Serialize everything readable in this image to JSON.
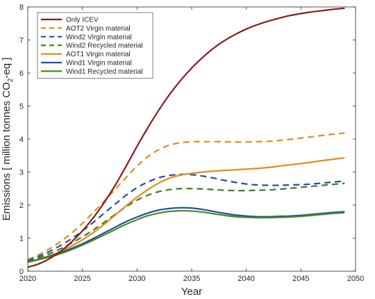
{
  "chart_data": {
    "type": "line",
    "title": "",
    "xlabel": "Year",
    "ylabel_main": "Emissions [ million tonnes CO",
    "ylabel_sub": "2",
    "ylabel_tail": "-eq ]",
    "xlim": [
      2020,
      2050
    ],
    "ylim": [
      0,
      8
    ],
    "x_ticks": [
      "2020",
      "2025",
      "2030",
      "2035",
      "2040",
      "2045",
      "2050"
    ],
    "y_ticks": [
      "0",
      "1",
      "2",
      "3",
      "4",
      "5",
      "6",
      "7",
      "8"
    ],
    "grid": false,
    "legend_position": "top-left",
    "x": [
      2020,
      2021,
      2022,
      2023,
      2024,
      2025,
      2026,
      2027,
      2028,
      2029,
      2030,
      2031,
      2032,
      2033,
      2034,
      2035,
      2036,
      2037,
      2038,
      2039,
      2040,
      2041,
      2042,
      2043,
      2044,
      2045,
      2046,
      2047,
      2048,
      2049
    ],
    "series": [
      {
        "name": "Only ICEV",
        "color": "#8b1a1a",
        "dash": "solid",
        "values": [
          0.12,
          0.22,
          0.38,
          0.6,
          0.88,
          1.22,
          1.62,
          2.08,
          2.6,
          3.18,
          3.78,
          4.35,
          4.88,
          5.36,
          5.78,
          6.15,
          6.47,
          6.75,
          6.98,
          7.17,
          7.33,
          7.46,
          7.57,
          7.66,
          7.74,
          7.8,
          7.85,
          7.89,
          7.93,
          7.96
        ]
      },
      {
        "name": "AOT2 Virgin material",
        "color": "#e08c14",
        "dash": "dashed",
        "values": [
          0.35,
          0.5,
          0.68,
          0.9,
          1.15,
          1.45,
          1.78,
          2.12,
          2.48,
          2.84,
          3.18,
          3.47,
          3.68,
          3.82,
          3.89,
          3.92,
          3.92,
          3.92,
          3.92,
          3.91,
          3.91,
          3.92,
          3.93,
          3.96,
          3.99,
          4.03,
          4.07,
          4.11,
          4.15,
          4.18
        ]
      },
      {
        "name": "Wind2 Virgin material",
        "color": "#1f4da8",
        "dash": "dashed",
        "values": [
          0.32,
          0.45,
          0.6,
          0.78,
          0.98,
          1.22,
          1.48,
          1.76,
          2.03,
          2.3,
          2.53,
          2.7,
          2.83,
          2.9,
          2.93,
          2.92,
          2.88,
          2.82,
          2.75,
          2.69,
          2.64,
          2.61,
          2.6,
          2.6,
          2.61,
          2.62,
          2.64,
          2.67,
          2.7,
          2.73
        ]
      },
      {
        "name": "Wind2 Recycled material",
        "color": "#3f7a1f",
        "dash": "dashed",
        "values": [
          0.3,
          0.4,
          0.53,
          0.68,
          0.85,
          1.04,
          1.25,
          1.48,
          1.72,
          1.95,
          2.15,
          2.3,
          2.41,
          2.47,
          2.5,
          2.5,
          2.49,
          2.47,
          2.45,
          2.44,
          2.44,
          2.45,
          2.46,
          2.48,
          2.51,
          2.54,
          2.57,
          2.6,
          2.63,
          2.66
        ]
      },
      {
        "name": "AOT1 Virgin material",
        "color": "#e08c14",
        "dash": "solid",
        "values": [
          0.28,
          0.36,
          0.47,
          0.6,
          0.76,
          0.95,
          1.17,
          1.42,
          1.7,
          1.98,
          2.24,
          2.47,
          2.67,
          2.82,
          2.91,
          2.96,
          3.0,
          3.03,
          3.05,
          3.07,
          3.09,
          3.11,
          3.14,
          3.18,
          3.22,
          3.26,
          3.3,
          3.35,
          3.39,
          3.43
        ]
      },
      {
        "name": "Wind1 Virgin material",
        "color": "#1f4da8",
        "dash": "solid",
        "values": [
          0.28,
          0.36,
          0.45,
          0.56,
          0.69,
          0.83,
          0.99,
          1.16,
          1.33,
          1.5,
          1.64,
          1.76,
          1.85,
          1.9,
          1.92,
          1.91,
          1.87,
          1.81,
          1.75,
          1.7,
          1.67,
          1.65,
          1.65,
          1.66,
          1.67,
          1.69,
          1.72,
          1.75,
          1.78,
          1.8
        ]
      },
      {
        "name": "Wind1 Recycled material",
        "color": "#4a8a1f",
        "dash": "solid",
        "values": [
          0.27,
          0.35,
          0.43,
          0.53,
          0.65,
          0.79,
          0.94,
          1.1,
          1.26,
          1.42,
          1.56,
          1.68,
          1.76,
          1.81,
          1.83,
          1.82,
          1.79,
          1.74,
          1.69,
          1.65,
          1.63,
          1.62,
          1.62,
          1.63,
          1.64,
          1.66,
          1.69,
          1.72,
          1.75,
          1.77
        ]
      }
    ]
  }
}
